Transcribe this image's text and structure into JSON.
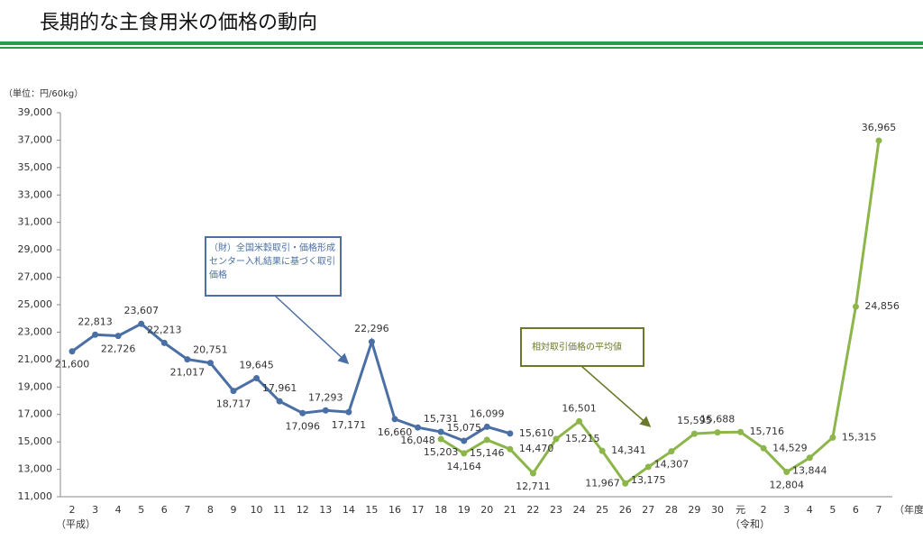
{
  "chart_data": {
    "type": "line",
    "title": "長期的な主食用米の価格の動向",
    "unit_label": "（単位：円/60kg）",
    "xlabel": "（年度）",
    "era_labels": {
      "heisei": "（平成）",
      "reiwa": "（令和）"
    },
    "categories": [
      "2",
      "3",
      "4",
      "5",
      "6",
      "7",
      "8",
      "9",
      "10",
      "11",
      "12",
      "13",
      "14",
      "15",
      "16",
      "17",
      "18",
      "19",
      "20",
      "21",
      "22",
      "23",
      "24",
      "25",
      "26",
      "27",
      "28",
      "29",
      "30",
      "元",
      "2",
      "3",
      "4",
      "5",
      "6",
      "7"
    ],
    "series": [
      {
        "name": "（財）全国米穀取引・価格形成センター入札結果に基づく取引価格",
        "color": "#4a6fa5",
        "values": [
          21600,
          22813,
          22726,
          23607,
          22213,
          21017,
          20751,
          18717,
          19645,
          17961,
          17096,
          17293,
          17171,
          22296,
          16660,
          16048,
          15731,
          15075,
          16099,
          15610,
          null,
          null,
          null,
          null,
          null,
          null,
          null,
          null,
          null,
          null,
          null,
          null,
          null,
          null,
          null,
          null
        ],
        "value_labels": [
          "21,600",
          "22,813",
          "22,726",
          "23,607",
          "22,213",
          "21,017",
          "20,751",
          "18,717",
          "19,645",
          "17,961",
          "17,096",
          "17,293",
          "17,171",
          "22,296",
          "16,660",
          "16,048",
          "15,731",
          "15,075",
          "16,099",
          "15,610",
          null,
          null,
          null,
          null,
          null,
          null,
          null,
          null,
          null,
          null,
          null,
          null,
          null,
          null,
          null,
          null
        ]
      },
      {
        "name": "相対取引価格の平均値",
        "color": "#8cb64a",
        "values": [
          null,
          null,
          null,
          null,
          null,
          null,
          null,
          null,
          null,
          null,
          null,
          null,
          null,
          null,
          null,
          null,
          15203,
          14164,
          15146,
          14470,
          12711,
          15215,
          16501,
          14341,
          11967,
          13175,
          14307,
          15595,
          15688,
          15716,
          14529,
          12804,
          13844,
          15315,
          24856,
          36965
        ],
        "value_labels": [
          null,
          null,
          null,
          null,
          null,
          null,
          null,
          null,
          null,
          null,
          null,
          null,
          null,
          null,
          null,
          null,
          "15,203",
          "14,164",
          "15,146",
          "14,470",
          "12,711",
          "15,215",
          "16,501",
          "14,341",
          "11,967",
          "13,175",
          "14,307",
          "15,595",
          "15,688",
          "15,716",
          "14,529",
          "12,804",
          "13,844",
          "15,315",
          "24,856",
          "36,965"
        ]
      }
    ],
    "ylim": [
      11000,
      39000
    ],
    "yticks": [
      {
        "value": 11000,
        "label": "11,000"
      },
      {
        "value": 13000,
        "label": "13,000"
      },
      {
        "value": 15000,
        "label": "15,000"
      },
      {
        "value": 17000,
        "label": "17,000"
      },
      {
        "value": 19000,
        "label": "19,000"
      },
      {
        "value": 21000,
        "label": "21,000"
      },
      {
        "value": 23000,
        "label": "23,000"
      },
      {
        "value": 25000,
        "label": "25,000"
      },
      {
        "value": 27000,
        "label": "27,000"
      },
      {
        "value": 29000,
        "label": "29,000"
      },
      {
        "value": 31000,
        "label": "31,000"
      },
      {
        "value": 33000,
        "label": "33,000"
      },
      {
        "value": 35000,
        "label": "35,000"
      },
      {
        "value": 37000,
        "label": "37,000"
      },
      {
        "value": 39000,
        "label": "39,000"
      }
    ],
    "grid": false
  }
}
